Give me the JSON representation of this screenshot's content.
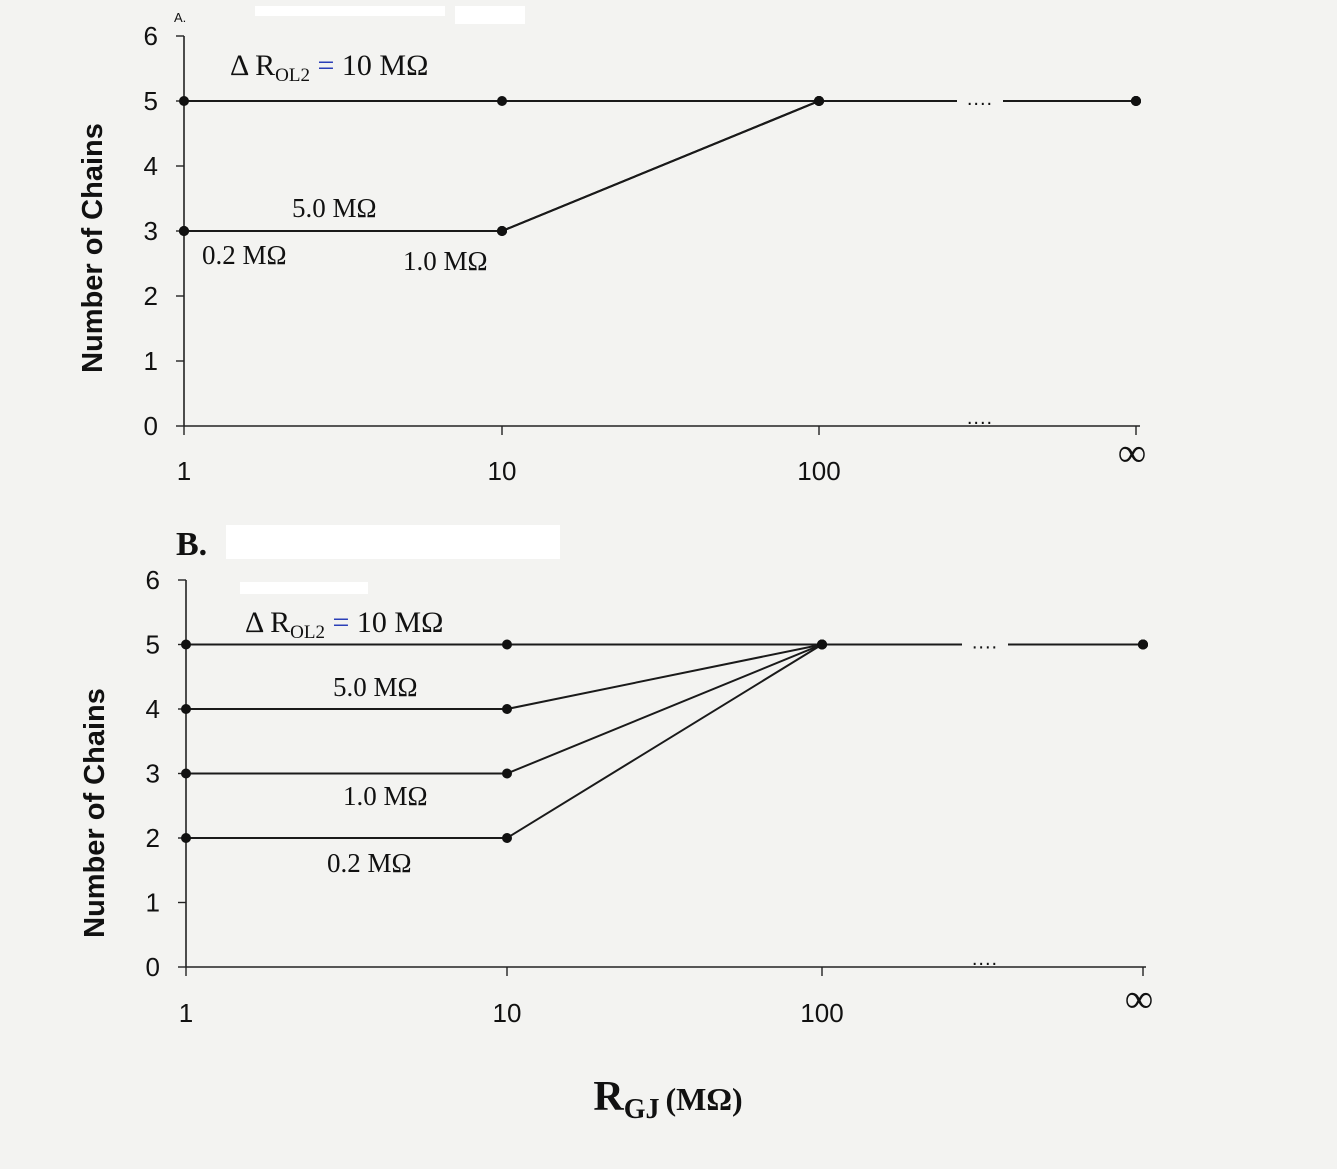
{
  "figure": {
    "xlabel_main": "R",
    "xlabel_sub": "GJ",
    "xlabel_unit": "(MΩ)"
  },
  "chart_data": [
    {
      "type": "line",
      "panel": "A.",
      "ylabel": "Number of Chains",
      "x_scale": "log",
      "x_ticks": [
        "1",
        "10",
        "100",
        "∞"
      ],
      "y_ticks": [
        "0",
        "1",
        "2",
        "3",
        "4",
        "5",
        "6"
      ],
      "ylim": [
        0,
        6
      ],
      "x_positions": [
        "1",
        "10",
        "100",
        "∞"
      ],
      "legend_prefix": "Δ R",
      "legend_sub": "OL2",
      "legend_eq": "=",
      "series": [
        {
          "name": "10 MΩ",
          "values": [
            5,
            5,
            5,
            5
          ]
        },
        {
          "name": "5.0 MΩ",
          "values": [
            3,
            3,
            5,
            5
          ]
        },
        {
          "name": "1.0 MΩ",
          "values": [
            3,
            3,
            5,
            5
          ]
        },
        {
          "name": "0.2 MΩ",
          "values": [
            3,
            3,
            5,
            5
          ]
        }
      ],
      "grid": false
    },
    {
      "type": "line",
      "panel": "B.",
      "ylabel": "Number of Chains",
      "x_scale": "log",
      "x_ticks": [
        "1",
        "10",
        "100",
        "∞"
      ],
      "y_ticks": [
        "0",
        "1",
        "2",
        "3",
        "4",
        "5",
        "6"
      ],
      "ylim": [
        0,
        6
      ],
      "x_positions": [
        "1",
        "10",
        "100",
        "∞"
      ],
      "legend_prefix": "Δ R",
      "legend_sub": "OL2",
      "legend_eq": "=",
      "series": [
        {
          "name": "10 MΩ",
          "values": [
            5,
            5,
            5,
            5
          ]
        },
        {
          "name": "5.0 MΩ",
          "values": [
            4,
            4,
            5,
            5
          ]
        },
        {
          "name": "1.0 MΩ",
          "values": [
            3,
            3,
            5,
            5
          ]
        },
        {
          "name": "0.2 MΩ",
          "values": [
            2,
            2,
            5,
            5
          ]
        }
      ],
      "grid": false
    }
  ]
}
